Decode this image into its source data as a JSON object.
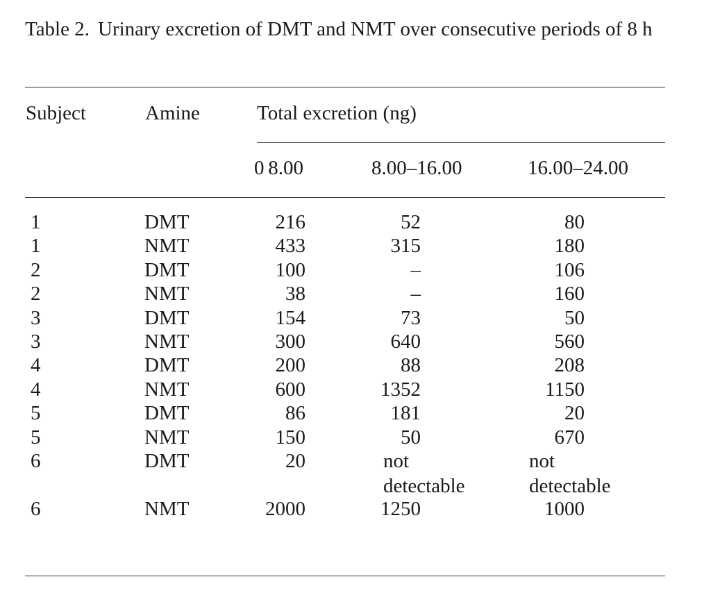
{
  "caption": {
    "label": "Table 2.",
    "text": "Urinary excretion of DMT and NMT over consecutive periods of 8 h"
  },
  "header": {
    "subject": "Subject",
    "amine": "Amine",
    "total": "Total excretion (ng)",
    "periods": [
      "0 8.00",
      "8.00–16.00",
      "16.00–24.00"
    ]
  },
  "rows": [
    {
      "subject": "1",
      "amine": "DMT",
      "p1": "216",
      "p2": "52",
      "p3": "80"
    },
    {
      "subject": "1",
      "amine": "NMT",
      "p1": "433",
      "p2": "315",
      "p3": "180"
    },
    {
      "subject": "2",
      "amine": "DMT",
      "p1": "100",
      "p2": "–",
      "p3": "106"
    },
    {
      "subject": "2",
      "amine": "NMT",
      "p1": "38",
      "p2": "–",
      "p3": "160"
    },
    {
      "subject": "3",
      "amine": "DMT",
      "p1": "154",
      "p2": "73",
      "p3": "50"
    },
    {
      "subject": "3",
      "amine": "NMT",
      "p1": "300",
      "p2": "640",
      "p3": "560"
    },
    {
      "subject": "4",
      "amine": "DMT",
      "p1": "200",
      "p2": "88",
      "p3": "208"
    },
    {
      "subject": "4",
      "amine": "NMT",
      "p1": "600",
      "p2": "1352",
      "p3": "1150"
    },
    {
      "subject": "5",
      "amine": "DMT",
      "p1": "86",
      "p2": "181",
      "p3": "20"
    },
    {
      "subject": "5",
      "amine": "NMT",
      "p1": "150",
      "p2": "50",
      "p3": "670"
    },
    {
      "subject": "6",
      "amine": "DMT",
      "p1": "20",
      "p2": "not detectable",
      "p3": "not detectable"
    },
    {
      "subject": "6",
      "amine": "NMT",
      "p1": "2000",
      "p2": "1250",
      "p3": "1000"
    }
  ]
}
